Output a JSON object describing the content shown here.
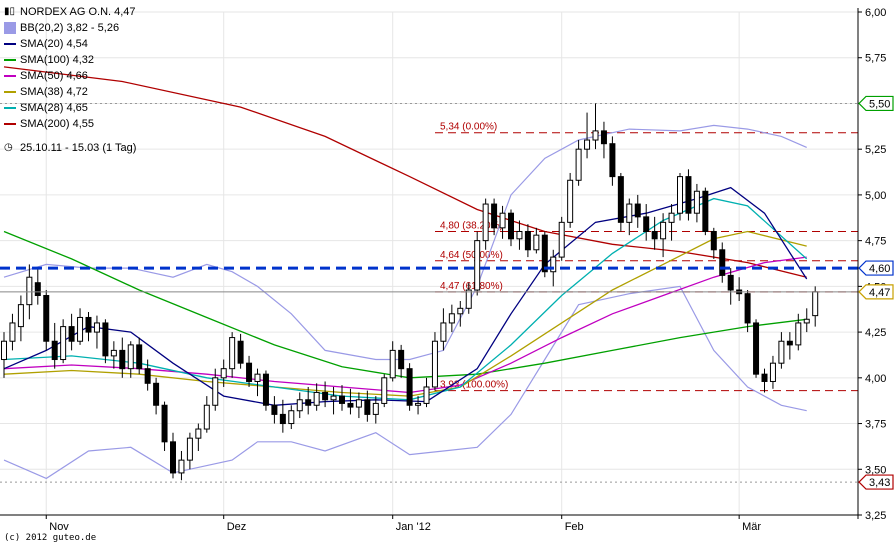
{
  "legend": {
    "title": "NORDEX AG O.N. 4,47",
    "bb": "BB(20,2) 3,82 - 5,26",
    "sma20": "SMA(20) 4,54",
    "sma100": "SMA(100) 4,32",
    "sma50": "SMA(50) 4,66",
    "sma38": "SMA(38) 4,72",
    "sma28": "SMA(28) 4,65",
    "sma200": "SMA(200) 4,55",
    "range": "25.10.11 - 15.03 (1 Tag)"
  },
  "copyright": "(c) 2012 guteo.de",
  "colors": {
    "sma20": "#000080",
    "sma100": "#00a000",
    "sma50": "#c000c0",
    "sma38": "#b0a000",
    "sma28": "#00b0b0",
    "sma200": "#b00000",
    "bb": "#9a9ae6",
    "fib": "#b00000",
    "support": "#0033cc"
  },
  "chart_data": {
    "type": "candlestick",
    "ylim": [
      3.25,
      6.0
    ],
    "y_ticks": [
      "3,25",
      "3,50",
      "3,75",
      "4,00",
      "4,25",
      "4,50",
      "4,75",
      "5,00",
      "5,25",
      "5,50",
      "5,75",
      "6,00"
    ],
    "x_ticks": [
      "Nov",
      "Dez",
      "Jan '12",
      "Feb",
      "Mär"
    ],
    "fib_levels": [
      {
        "label": "5,34 (0.00%)",
        "value": 5.34
      },
      {
        "label": "4,80 (38.20%)",
        "value": 4.8
      },
      {
        "label": "4,64 (50.00%)",
        "value": 4.64
      },
      {
        "label": "4,47 (61.80%)",
        "value": 4.47
      },
      {
        "label": "3,93 (100.00%)",
        "value": 3.93
      }
    ],
    "support_line": 4.6,
    "current_price": 4.47,
    "price_tags": [
      {
        "label": "5,50",
        "value": 5.5,
        "color": "#00a000"
      },
      {
        "label": "4,60",
        "value": 4.6,
        "color": "#0033cc"
      },
      {
        "label": "4,47",
        "value": 4.47,
        "color": "#c8a000"
      },
      {
        "label": "3,43",
        "value": 3.43,
        "color": "#b00000"
      }
    ],
    "dotted_levels": [
      5.5,
      3.43
    ],
    "candles": [
      {
        "o": 4.1,
        "h": 4.25,
        "l": 4.0,
        "c": 4.2
      },
      {
        "o": 4.2,
        "h": 4.35,
        "l": 4.15,
        "c": 4.3
      },
      {
        "o": 4.28,
        "h": 4.45,
        "l": 4.2,
        "c": 4.4
      },
      {
        "o": 4.4,
        "h": 4.62,
        "l": 4.32,
        "c": 4.55
      },
      {
        "o": 4.52,
        "h": 4.6,
        "l": 4.4,
        "c": 4.45
      },
      {
        "o": 4.45,
        "h": 4.48,
        "l": 4.15,
        "c": 4.2
      },
      {
        "o": 4.2,
        "h": 4.3,
        "l": 4.05,
        "c": 4.1
      },
      {
        "o": 4.1,
        "h": 4.32,
        "l": 4.08,
        "c": 4.28
      },
      {
        "o": 4.28,
        "h": 4.35,
        "l": 4.15,
        "c": 4.2
      },
      {
        "o": 4.2,
        "h": 4.38,
        "l": 4.18,
        "c": 4.33
      },
      {
        "o": 4.33,
        "h": 4.36,
        "l": 4.2,
        "c": 4.25
      },
      {
        "o": 4.25,
        "h": 4.34,
        "l": 4.16,
        "c": 4.3
      },
      {
        "o": 4.3,
        "h": 4.32,
        "l": 4.08,
        "c": 4.12
      },
      {
        "o": 4.12,
        "h": 4.2,
        "l": 4.05,
        "c": 4.15
      },
      {
        "o": 4.15,
        "h": 4.22,
        "l": 4.0,
        "c": 4.05
      },
      {
        "o": 4.05,
        "h": 4.2,
        "l": 4.0,
        "c": 4.18
      },
      {
        "o": 4.18,
        "h": 4.22,
        "l": 4.02,
        "c": 4.05
      },
      {
        "o": 4.05,
        "h": 4.1,
        "l": 3.93,
        "c": 3.97
      },
      {
        "o": 3.97,
        "h": 4.0,
        "l": 3.8,
        "c": 3.85
      },
      {
        "o": 3.85,
        "h": 3.87,
        "l": 3.6,
        "c": 3.65
      },
      {
        "o": 3.65,
        "h": 3.7,
        "l": 3.45,
        "c": 3.48
      },
      {
        "o": 3.48,
        "h": 3.6,
        "l": 3.44,
        "c": 3.55
      },
      {
        "o": 3.55,
        "h": 3.7,
        "l": 3.5,
        "c": 3.67
      },
      {
        "o": 3.67,
        "h": 3.75,
        "l": 3.6,
        "c": 3.72
      },
      {
        "o": 3.72,
        "h": 3.9,
        "l": 3.7,
        "c": 3.85
      },
      {
        "o": 3.85,
        "h": 4.05,
        "l": 3.82,
        "c": 4.0
      },
      {
        "o": 4.0,
        "h": 4.1,
        "l": 3.95,
        "c": 4.05
      },
      {
        "o": 4.05,
        "h": 4.25,
        "l": 4.0,
        "c": 4.22
      },
      {
        "o": 4.2,
        "h": 4.24,
        "l": 4.05,
        "c": 4.08
      },
      {
        "o": 4.08,
        "h": 4.12,
        "l": 3.95,
        "c": 3.98
      },
      {
        "o": 3.98,
        "h": 4.05,
        "l": 3.9,
        "c": 4.02
      },
      {
        "o": 4.02,
        "h": 4.04,
        "l": 3.82,
        "c": 3.85
      },
      {
        "o": 3.85,
        "h": 3.9,
        "l": 3.75,
        "c": 3.8
      },
      {
        "o": 3.8,
        "h": 3.88,
        "l": 3.7,
        "c": 3.75
      },
      {
        "o": 3.75,
        "h": 3.85,
        "l": 3.72,
        "c": 3.82
      },
      {
        "o": 3.82,
        "h": 3.92,
        "l": 3.78,
        "c": 3.88
      },
      {
        "o": 3.88,
        "h": 3.95,
        "l": 3.8,
        "c": 3.85
      },
      {
        "o": 3.85,
        "h": 3.97,
        "l": 3.82,
        "c": 3.92
      },
      {
        "o": 3.92,
        "h": 3.98,
        "l": 3.84,
        "c": 3.88
      },
      {
        "o": 3.88,
        "h": 3.95,
        "l": 3.8,
        "c": 3.9
      },
      {
        "o": 3.9,
        "h": 3.96,
        "l": 3.82,
        "c": 3.86
      },
      {
        "o": 3.86,
        "h": 3.94,
        "l": 3.8,
        "c": 3.84
      },
      {
        "o": 3.84,
        "h": 3.92,
        "l": 3.78,
        "c": 3.88
      },
      {
        "o": 3.88,
        "h": 3.93,
        "l": 3.76,
        "c": 3.8
      },
      {
        "o": 3.8,
        "h": 3.9,
        "l": 3.75,
        "c": 3.86
      },
      {
        "o": 3.86,
        "h": 4.02,
        "l": 3.84,
        "c": 4.0
      },
      {
        "o": 4.0,
        "h": 4.2,
        "l": 3.98,
        "c": 4.15
      },
      {
        "o": 4.15,
        "h": 4.18,
        "l": 4.0,
        "c": 4.05
      },
      {
        "o": 4.05,
        "h": 4.08,
        "l": 3.82,
        "c": 3.85
      },
      {
        "o": 3.85,
        "h": 3.9,
        "l": 3.8,
        "c": 3.86
      },
      {
        "o": 3.86,
        "h": 4.0,
        "l": 3.84,
        "c": 3.95
      },
      {
        "o": 3.95,
        "h": 4.25,
        "l": 3.93,
        "c": 4.2
      },
      {
        "o": 4.2,
        "h": 4.38,
        "l": 4.15,
        "c": 4.3
      },
      {
        "o": 4.3,
        "h": 4.4,
        "l": 4.25,
        "c": 4.35
      },
      {
        "o": 4.35,
        "h": 4.42,
        "l": 4.28,
        "c": 4.38
      },
      {
        "o": 4.38,
        "h": 4.52,
        "l": 4.35,
        "c": 4.48
      },
      {
        "o": 4.48,
        "h": 4.8,
        "l": 4.45,
        "c": 4.75
      },
      {
        "o": 4.75,
        "h": 4.98,
        "l": 4.7,
        "c": 4.95
      },
      {
        "o": 4.95,
        "h": 4.98,
        "l": 4.78,
        "c": 4.82
      },
      {
        "o": 4.82,
        "h": 4.94,
        "l": 4.76,
        "c": 4.9
      },
      {
        "o": 4.9,
        "h": 4.92,
        "l": 4.72,
        "c": 4.76
      },
      {
        "o": 4.76,
        "h": 4.86,
        "l": 4.7,
        "c": 4.8
      },
      {
        "o": 4.8,
        "h": 4.84,
        "l": 4.66,
        "c": 4.7
      },
      {
        "o": 4.7,
        "h": 4.82,
        "l": 4.68,
        "c": 4.78
      },
      {
        "o": 4.78,
        "h": 4.8,
        "l": 4.55,
        "c": 4.58
      },
      {
        "o": 4.58,
        "h": 4.7,
        "l": 4.5,
        "c": 4.66
      },
      {
        "o": 4.66,
        "h": 4.88,
        "l": 4.64,
        "c": 4.85
      },
      {
        "o": 4.85,
        "h": 5.12,
        "l": 4.82,
        "c": 5.08
      },
      {
        "o": 5.08,
        "h": 5.3,
        "l": 5.05,
        "c": 5.25
      },
      {
        "o": 5.25,
        "h": 5.45,
        "l": 5.2,
        "c": 5.3
      },
      {
        "o": 5.3,
        "h": 5.5,
        "l": 5.25,
        "c": 5.35
      },
      {
        "o": 5.35,
        "h": 5.4,
        "l": 5.2,
        "c": 5.28
      },
      {
        "o": 5.28,
        "h": 5.32,
        "l": 5.05,
        "c": 5.1
      },
      {
        "o": 5.1,
        "h": 5.12,
        "l": 4.8,
        "c": 4.85
      },
      {
        "o": 4.85,
        "h": 4.98,
        "l": 4.78,
        "c": 4.95
      },
      {
        "o": 4.95,
        "h": 5.0,
        "l": 4.82,
        "c": 4.88
      },
      {
        "o": 4.88,
        "h": 4.95,
        "l": 4.75,
        "c": 4.8
      },
      {
        "o": 4.8,
        "h": 4.88,
        "l": 4.7,
        "c": 4.76
      },
      {
        "o": 4.76,
        "h": 4.9,
        "l": 4.66,
        "c": 4.85
      },
      {
        "o": 4.85,
        "h": 4.95,
        "l": 4.75,
        "c": 4.9
      },
      {
        "o": 4.9,
        "h": 5.12,
        "l": 4.86,
        "c": 5.1
      },
      {
        "o": 5.1,
        "h": 5.14,
        "l": 4.86,
        "c": 4.9
      },
      {
        "o": 4.9,
        "h": 5.06,
        "l": 4.85,
        "c": 5.02
      },
      {
        "o": 5.02,
        "h": 5.04,
        "l": 4.78,
        "c": 4.8
      },
      {
        "o": 4.8,
        "h": 4.82,
        "l": 4.65,
        "c": 4.7
      },
      {
        "o": 4.7,
        "h": 4.74,
        "l": 4.52,
        "c": 4.56
      },
      {
        "o": 4.56,
        "h": 4.6,
        "l": 4.4,
        "c": 4.48
      },
      {
        "o": 4.48,
        "h": 4.55,
        "l": 4.42,
        "c": 4.46
      },
      {
        "o": 4.46,
        "h": 4.48,
        "l": 4.25,
        "c": 4.3
      },
      {
        "o": 4.3,
        "h": 4.32,
        "l": 4.0,
        "c": 4.02
      },
      {
        "o": 4.02,
        "h": 4.05,
        "l": 3.92,
        "c": 3.98
      },
      {
        "o": 3.98,
        "h": 4.12,
        "l": 3.94,
        "c": 4.08
      },
      {
        "o": 4.08,
        "h": 4.25,
        "l": 4.05,
        "c": 4.2
      },
      {
        "o": 4.2,
        "h": 4.25,
        "l": 4.1,
        "c": 4.18
      },
      {
        "o": 4.18,
        "h": 4.35,
        "l": 4.15,
        "c": 4.3
      },
      {
        "o": 4.3,
        "h": 4.38,
        "l": 4.25,
        "c": 4.32
      },
      {
        "o": 4.34,
        "h": 4.5,
        "l": 4.28,
        "c": 4.47
      }
    ],
    "series": [
      {
        "name": "SMA(200)",
        "key": "sma200",
        "points": [
          [
            0,
            5.7
          ],
          [
            14,
            5.62
          ],
          [
            28,
            5.48
          ],
          [
            38,
            5.32
          ],
          [
            48,
            5.1
          ],
          [
            56,
            4.92
          ],
          [
            64,
            4.8
          ],
          [
            72,
            4.73
          ],
          [
            80,
            4.69
          ],
          [
            88,
            4.63
          ],
          [
            95,
            4.55
          ]
        ]
      },
      {
        "name": "SMA(100)",
        "key": "sma100",
        "points": [
          [
            0,
            4.8
          ],
          [
            8,
            4.65
          ],
          [
            16,
            4.48
          ],
          [
            24,
            4.33
          ],
          [
            32,
            4.18
          ],
          [
            40,
            4.06
          ],
          [
            48,
            4.0
          ],
          [
            56,
            4.02
          ],
          [
            64,
            4.08
          ],
          [
            72,
            4.15
          ],
          [
            80,
            4.22
          ],
          [
            88,
            4.28
          ],
          [
            95,
            4.32
          ]
        ]
      },
      {
        "name": "SMA(50)",
        "key": "sma50",
        "points": [
          [
            0,
            4.05
          ],
          [
            8,
            4.07
          ],
          [
            16,
            4.05
          ],
          [
            24,
            4.02
          ],
          [
            32,
            3.98
          ],
          [
            40,
            3.95
          ],
          [
            48,
            3.92
          ],
          [
            54,
            3.96
          ],
          [
            60,
            4.08
          ],
          [
            66,
            4.22
          ],
          [
            72,
            4.35
          ],
          [
            78,
            4.45
          ],
          [
            84,
            4.55
          ],
          [
            90,
            4.63
          ],
          [
            95,
            4.66
          ]
        ]
      },
      {
        "name": "SMA(38)",
        "key": "sma38",
        "points": [
          [
            0,
            4.02
          ],
          [
            8,
            4.04
          ],
          [
            16,
            4.02
          ],
          [
            24,
            3.98
          ],
          [
            32,
            3.95
          ],
          [
            40,
            3.92
          ],
          [
            48,
            3.9
          ],
          [
            54,
            3.95
          ],
          [
            60,
            4.12
          ],
          [
            66,
            4.3
          ],
          [
            72,
            4.48
          ],
          [
            78,
            4.62
          ],
          [
            84,
            4.76
          ],
          [
            88,
            4.8
          ],
          [
            95,
            4.72
          ]
        ]
      },
      {
        "name": "SMA(28)",
        "key": "sma28",
        "points": [
          [
            0,
            4.1
          ],
          [
            8,
            4.12
          ],
          [
            16,
            4.08
          ],
          [
            24,
            4.0
          ],
          [
            32,
            3.95
          ],
          [
            40,
            3.9
          ],
          [
            48,
            3.88
          ],
          [
            54,
            3.95
          ],
          [
            60,
            4.18
          ],
          [
            66,
            4.45
          ],
          [
            72,
            4.68
          ],
          [
            78,
            4.86
          ],
          [
            84,
            4.98
          ],
          [
            88,
            4.94
          ],
          [
            95,
            4.65
          ]
        ]
      },
      {
        "name": "SMA(20)",
        "key": "sma20",
        "points": [
          [
            0,
            4.05
          ],
          [
            5,
            4.15
          ],
          [
            10,
            4.28
          ],
          [
            15,
            4.25
          ],
          [
            20,
            4.08
          ],
          [
            26,
            3.9
          ],
          [
            32,
            3.85
          ],
          [
            38,
            3.87
          ],
          [
            44,
            3.88
          ],
          [
            50,
            3.87
          ],
          [
            56,
            4.05
          ],
          [
            60,
            4.35
          ],
          [
            64,
            4.62
          ],
          [
            70,
            4.85
          ],
          [
            76,
            4.9
          ],
          [
            82,
            4.98
          ],
          [
            86,
            5.04
          ],
          [
            90,
            4.9
          ],
          [
            95,
            4.54
          ]
        ]
      },
      {
        "name": "BB upper",
        "key": "bb",
        "points": [
          [
            0,
            4.55
          ],
          [
            5,
            4.62
          ],
          [
            10,
            4.6
          ],
          [
            15,
            4.6
          ],
          [
            20,
            4.55
          ],
          [
            24,
            4.62
          ],
          [
            27,
            4.58
          ],
          [
            30,
            4.5
          ],
          [
            34,
            4.35
          ],
          [
            38,
            4.15
          ],
          [
            44,
            4.1
          ],
          [
            48,
            4.1
          ],
          [
            52,
            4.15
          ],
          [
            56,
            4.5
          ],
          [
            60,
            5.0
          ],
          [
            64,
            5.2
          ],
          [
            68,
            5.3
          ],
          [
            74,
            5.36
          ],
          [
            80,
            5.35
          ],
          [
            84,
            5.38
          ],
          [
            88,
            5.36
          ],
          [
            92,
            5.32
          ],
          [
            95,
            5.26
          ]
        ]
      },
      {
        "name": "BB lower",
        "key": "bb",
        "points": [
          [
            0,
            3.55
          ],
          [
            5,
            3.45
          ],
          [
            10,
            3.6
          ],
          [
            15,
            3.62
          ],
          [
            20,
            3.48
          ],
          [
            24,
            3.52
          ],
          [
            27,
            3.55
          ],
          [
            30,
            3.65
          ],
          [
            34,
            3.65
          ],
          [
            38,
            3.6
          ],
          [
            44,
            3.7
          ],
          [
            48,
            3.58
          ],
          [
            52,
            3.6
          ],
          [
            56,
            3.62
          ],
          [
            60,
            3.8
          ],
          [
            64,
            4.1
          ],
          [
            68,
            4.4
          ],
          [
            74,
            4.46
          ],
          [
            80,
            4.5
          ],
          [
            84,
            4.15
          ],
          [
            88,
            3.95
          ],
          [
            92,
            3.85
          ],
          [
            95,
            3.82
          ]
        ]
      }
    ]
  }
}
